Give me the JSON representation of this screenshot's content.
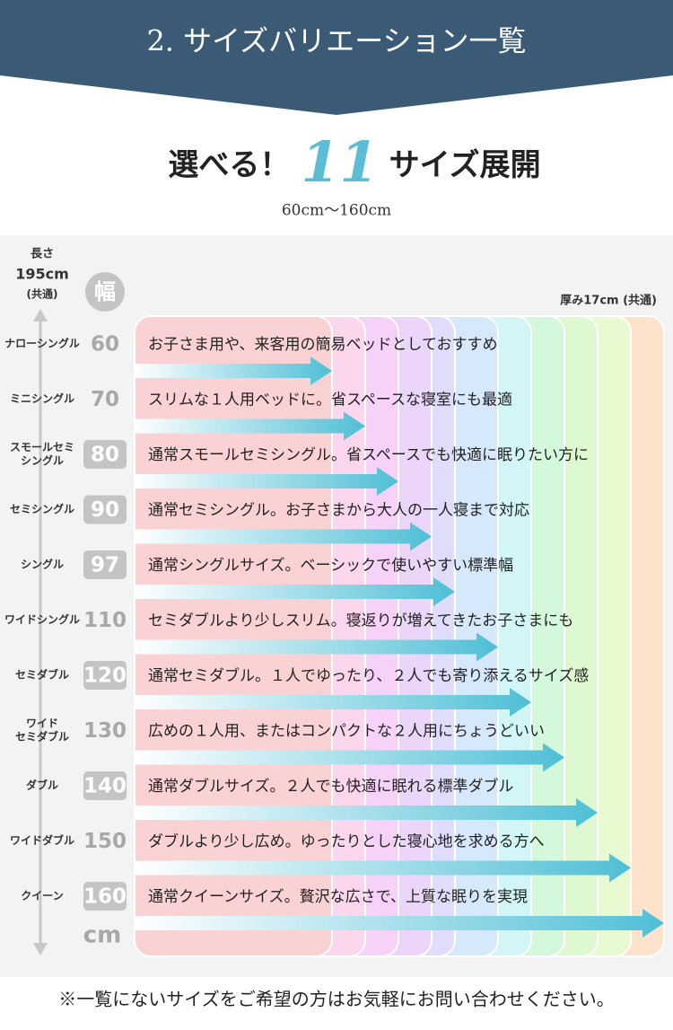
{
  "header": {
    "title": "2. サイズバリエーション一覧"
  },
  "headline": {
    "prefix": "選べる！",
    "count": 11,
    "suffix": "サイズ展開",
    "range": "60cm〜160cm"
  },
  "length": {
    "label": "長さ",
    "value": "195cm",
    "note": "(共通)"
  },
  "width_label": "幅",
  "thickness": "厚み17cm (共通)",
  "unit": "cm",
  "rows": [
    {
      "name": [
        "ナローシングル"
      ],
      "width": 60,
      "description": "お子さま用や、来客用の簡易ベッドとしておすすめ"
    },
    {
      "name": [
        "ミニシングル"
      ],
      "width": 70,
      "description": "スリムな１人用ベッドに。省スペースな寝室にも最適"
    },
    {
      "name": [
        "スモールセミ",
        "シングル"
      ],
      "width": 80,
      "description": "通常スモールセミシングル。省スペースでも快適に眠りたい方に"
    },
    {
      "name": [
        "セミシングル"
      ],
      "width": 90,
      "description": "通常セミシングル。お子さまから大人の一人寝まで対応"
    },
    {
      "name": [
        "シングル"
      ],
      "width": 97,
      "description": "通常シングルサイズ。ベーシックで使いやすい標準幅"
    },
    {
      "name": [
        "ワイドシングル"
      ],
      "width": 110,
      "description": "セミダブルより少しスリム。寝返りが増えてきたお子さまにも"
    },
    {
      "name": [
        "セミダブル"
      ],
      "width": 120,
      "description": "通常セミダブル。１人でゆったり、２人でも寄り添えるサイズ感"
    },
    {
      "name": [
        "ワイド",
        "セミダブル"
      ],
      "width": 130,
      "description": "広めの１人用、またはコンパクトな２人用にちょうどいい"
    },
    {
      "name": [
        "ダブル"
      ],
      "width": 140,
      "description": "通常ダブルサイズ。２人でも快適に眠れる標準ダブル"
    },
    {
      "name": [
        "ワイドダブル"
      ],
      "width": 150,
      "description": "ダブルより少し広め。ゆったりとした寝心地を求める方へ"
    },
    {
      "name": [
        "クイーン"
      ],
      "width": 160,
      "description": "通常クイーンサイズ。贅沢な広さで、上質な眠りを実現"
    }
  ],
  "footer": "※一覧にないサイズをご希望の方はお気軽にお問い合わせください。"
}
